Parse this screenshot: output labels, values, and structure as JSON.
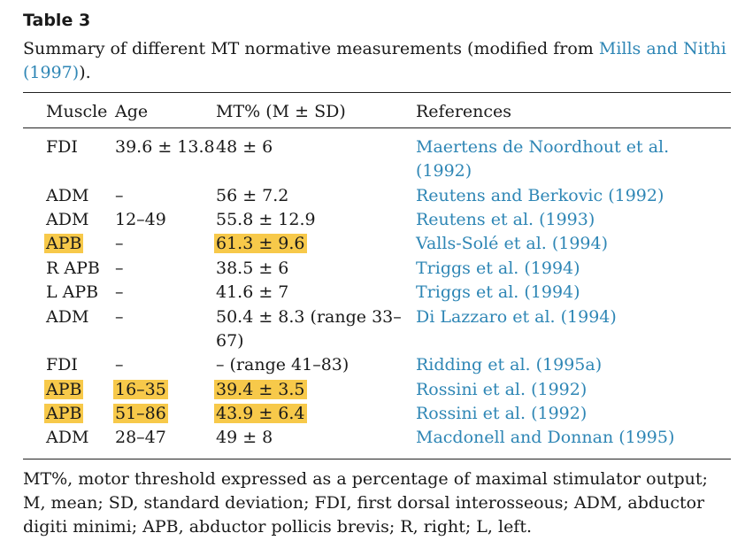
{
  "table_label": "Table 3",
  "caption": {
    "prefix": "Summary of different MT normative measurements (modified from ",
    "link_text_line1": "Mills and Nithi",
    "link_text_line2": "(1997)",
    "suffix": ")."
  },
  "headers": {
    "muscle": "Muscle",
    "age": "Age",
    "mt": "MT% (M ± SD)",
    "ref": "References"
  },
  "rows": [
    {
      "muscle": "FDI",
      "age": "39.6 ± 13.8",
      "mt": "48 ± 6",
      "ref_line1": "Maertens de Noordhout et al.",
      "ref_line2": "(1992)"
    },
    {
      "muscle": "ADM",
      "age": "–",
      "mt": "56 ± 7.2",
      "ref_line1": "Reutens and Berkovic (1992)"
    },
    {
      "muscle": "ADM",
      "age": "12–49",
      "mt": "55.8 ± 12.9",
      "ref_line1": "Reutens et al. (1993)"
    },
    {
      "muscle": "APB",
      "age": "–",
      "mt": "61.3 ± 9.6",
      "ref_line1": "Valls-Solé et al. (1994)"
    },
    {
      "muscle": "R APB",
      "age": "–",
      "mt": "38.5 ± 6",
      "ref_line1": "Triggs et al. (1994)"
    },
    {
      "muscle": "L APB",
      "age": "–",
      "mt": "41.6 ± 7",
      "ref_line1": "Triggs et al. (1994)"
    },
    {
      "muscle": "ADM",
      "age": "–",
      "mt_line1": "50.4 ± 8.3 (range 33–",
      "mt_line2": "67)",
      "ref_line1": "Di Lazzaro et al. (1994)"
    },
    {
      "muscle": "FDI",
      "age": "–",
      "mt": "– (range 41–83)",
      "ref_line1": "Ridding et al. (1995a)"
    },
    {
      "muscle": "APB",
      "age": "16–35",
      "mt": "39.4 ± 3.5",
      "ref_line1": "Rossini et al. (1992)"
    },
    {
      "muscle": "APB",
      "age": "51–86",
      "mt": "43.9 ± 6.4",
      "ref_line1": "Rossini et al. (1992)"
    },
    {
      "muscle": "ADM",
      "age": "28–47",
      "mt": "49 ± 8",
      "ref_line1": "Macdonell and Donnan (1995)"
    }
  ],
  "footnote": "MT%, motor threshold expressed as a percentage of maximal stimulator output; M, mean; SD, standard deviation; FDI, first dorsal interosseous; ADM, abductor digiti minimi; APB, abductor pollicis brevis; R, right; L, left.",
  "colors": {
    "link": "#2e86b5",
    "highlight": "#f7c94a"
  }
}
